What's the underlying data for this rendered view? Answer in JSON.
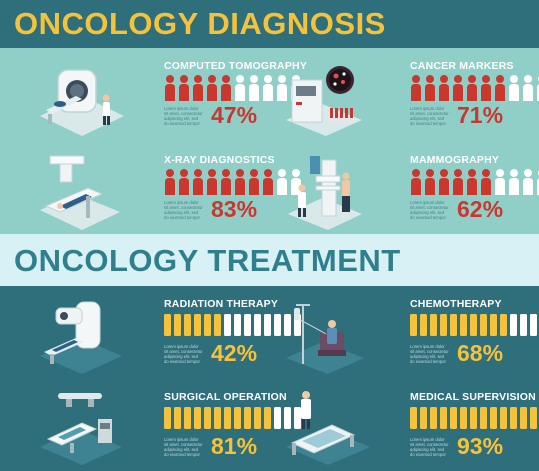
{
  "diagnosis": {
    "heading": "ONCOLOGY DIAGNOSIS",
    "colors": {
      "filled": "#c9382f",
      "empty": "#ffffff"
    },
    "items": [
      {
        "title": "COMPUTED TOMOGRAPHY",
        "percent": "47%",
        "filled": 5,
        "total": 10,
        "illustration": "ct-scanner-icon",
        "body": "Lorem ipsum dolor\nsit amet, consectetur\nadipiscing elit, sed\ndo eiusmod tempor"
      },
      {
        "title": "CANCER MARKERS",
        "percent": "71%",
        "filled": 7,
        "total": 10,
        "illustration": "lab-analyzer-icon",
        "body": "Lorem ipsum dolor\nsit amet, consectetur\nadipiscing elit, sed\ndo eiusmod tempor"
      },
      {
        "title": "X-RAY DIAGNOSTICS",
        "percent": "83%",
        "filled": 8,
        "total": 10,
        "illustration": "xray-machine-icon",
        "body": "Lorem ipsum dolor\nsit amet, consectetur\nadipiscing elit, sed\ndo eiusmod tempor"
      },
      {
        "title": "MAMMOGRAPHY",
        "percent": "62%",
        "filled": 6,
        "total": 10,
        "illustration": "mammography-icon",
        "body": "Lorem ipsum dolor\nsit amet, consectetur\nadipiscing elit, sed\ndo eiusmod tempor"
      }
    ]
  },
  "treatment": {
    "heading": "ONCOLOGY TREATMENT",
    "colors": {
      "filled": "#f5c33b",
      "empty": "#ffffff"
    },
    "items": [
      {
        "title": "RADIATION THERAPY",
        "percent": "42%",
        "filled": 6,
        "total": 14,
        "illustration": "radiation-machine-icon",
        "body": "Lorem ipsum dolor\nsit amet, consectetur\nadipiscing elit, sed\ndo eiusmod tempor"
      },
      {
        "title": "CHEMOTHERAPY",
        "percent": "68%",
        "filled": 10,
        "total": 14,
        "illustration": "iv-drip-patient-icon",
        "body": "Lorem ipsum dolor\nsit amet, consectetur\nadipiscing elit, sed\ndo eiusmod tempor"
      },
      {
        "title": "SURGICAL OPERATION",
        "percent": "81%",
        "filled": 11,
        "total": 14,
        "illustration": "surgery-table-icon",
        "body": "Lorem ipsum dolor\nsit amet, consectetur\nadipiscing elit, sed\ndo eiusmod tempor"
      },
      {
        "title": "MEDICAL SUPERVISION",
        "percent": "93%",
        "filled": 13,
        "total": 14,
        "illustration": "hospital-bed-doctor-icon",
        "body": "Lorem ipsum dolor\nsit amet, consectetur\nadipiscing elit, sed\ndo eiusmod tempor"
      }
    ]
  }
}
